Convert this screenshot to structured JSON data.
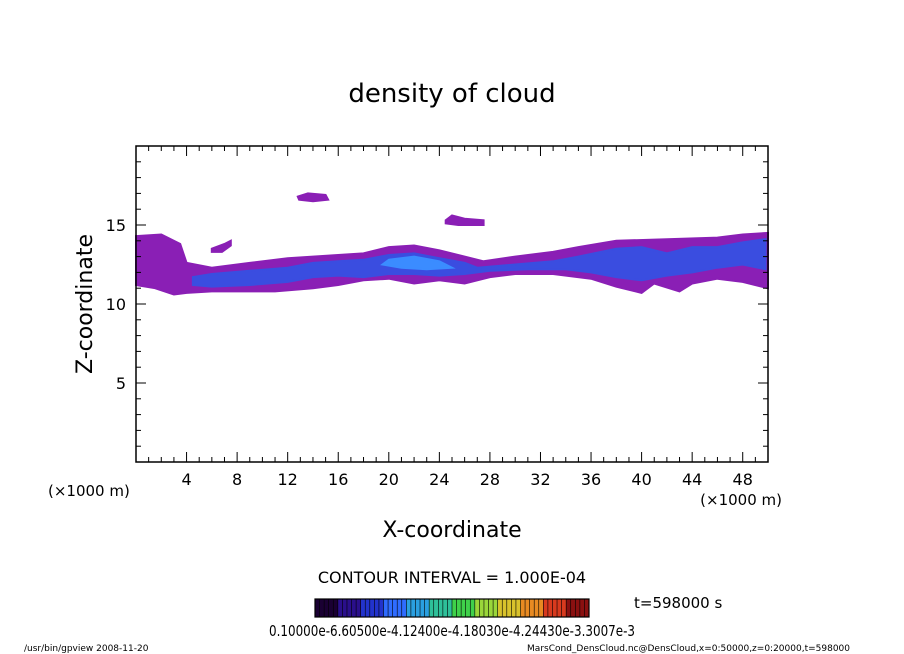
{
  "chart_data": {
    "type": "heatmap",
    "title": "density of cloud",
    "xlabel": "X-coordinate",
    "ylabel": "Z-coordinate",
    "x_unit": "(×1000 m)",
    "x_unit_right": "(×1000 m)",
    "xlim": [
      0,
      50
    ],
    "ylim": [
      0,
      20
    ],
    "x_ticks": [
      4,
      8,
      12,
      16,
      20,
      24,
      28,
      32,
      36,
      40,
      44,
      48
    ],
    "x_tick_labels": [
      "4",
      "8",
      "12",
      "16",
      "20",
      "24",
      "28",
      "32",
      "36",
      "40",
      "44",
      "48"
    ],
    "y_ticks": [
      5,
      10,
      15
    ],
    "y_tick_labels": [
      "5",
      "10",
      "15"
    ],
    "contour_interval_text": "CONTOUR INTERVAL = 1.000E-04",
    "time_text": "t=598000 s",
    "colorbar_labels_text": "0.10000e-6.60500e-4.12400e-4.18030e-4.24430e-3.3007e-3",
    "colorbar_colors": [
      "#1a0033",
      "#2a0f8c",
      "#2233cc",
      "#2f6cff",
      "#2a9fe0",
      "#2ec09a",
      "#3fd14a",
      "#9ad63a",
      "#d8c22c",
      "#e88a22",
      "#d83a1e",
      "#8a1010"
    ],
    "layers": [
      {
        "name": "outer",
        "color": "#8a1fb5",
        "polygon": [
          [
            0,
            14.3
          ],
          [
            2,
            14.4
          ],
          [
            3.5,
            13.8
          ],
          [
            4,
            12.6
          ],
          [
            6,
            12.3
          ],
          [
            9,
            12.6
          ],
          [
            12,
            12.9
          ],
          [
            14,
            13.0
          ],
          [
            18,
            13.2
          ],
          [
            20,
            13.6
          ],
          [
            22,
            13.7
          ],
          [
            24,
            13.4
          ],
          [
            26,
            13.0
          ],
          [
            27.5,
            12.7
          ],
          [
            30,
            13.0
          ],
          [
            33,
            13.3
          ],
          [
            35,
            13.6
          ],
          [
            38,
            14.0
          ],
          [
            42,
            14.1
          ],
          [
            46,
            14.2
          ],
          [
            48,
            14.4
          ],
          [
            50,
            14.5
          ],
          [
            50,
            11.0
          ],
          [
            48,
            11.4
          ],
          [
            46,
            11.6
          ],
          [
            44,
            11.3
          ],
          [
            43,
            10.8
          ],
          [
            41,
            11.3
          ],
          [
            40,
            10.7
          ],
          [
            38,
            11.1
          ],
          [
            36,
            11.6
          ],
          [
            33,
            11.9
          ],
          [
            30,
            11.9
          ],
          [
            28,
            11.7
          ],
          [
            26,
            11.3
          ],
          [
            24,
            11.5
          ],
          [
            22,
            11.3
          ],
          [
            20,
            11.6
          ],
          [
            18,
            11.5
          ],
          [
            16,
            11.2
          ],
          [
            14,
            11.0
          ],
          [
            11,
            10.8
          ],
          [
            8,
            10.8
          ],
          [
            6,
            10.8
          ],
          [
            4,
            10.7
          ],
          [
            3,
            10.6
          ],
          [
            1.5,
            11.0
          ],
          [
            0,
            11.2
          ]
        ]
      },
      {
        "name": "inner",
        "color": "#3a4de0",
        "polygon": [
          [
            4.5,
            11.7
          ],
          [
            6,
            11.9
          ],
          [
            9,
            12.1
          ],
          [
            12,
            12.3
          ],
          [
            14,
            12.6
          ],
          [
            16,
            12.7
          ],
          [
            18,
            12.8
          ],
          [
            20,
            13.1
          ],
          [
            22,
            13.2
          ],
          [
            24,
            12.9
          ],
          [
            26,
            12.6
          ],
          [
            27,
            12.3
          ],
          [
            30,
            12.5
          ],
          [
            33,
            12.7
          ],
          [
            35,
            13.0
          ],
          [
            38,
            13.5
          ],
          [
            40,
            13.6
          ],
          [
            42,
            13.2
          ],
          [
            44,
            13.6
          ],
          [
            46,
            13.6
          ],
          [
            48,
            13.9
          ],
          [
            49.8,
            14.1
          ],
          [
            49.8,
            12.2
          ],
          [
            48,
            12.5
          ],
          [
            46,
            12.3
          ],
          [
            44,
            12.0
          ],
          [
            42,
            11.8
          ],
          [
            40,
            11.5
          ],
          [
            38,
            11.7
          ],
          [
            36,
            12.0
          ],
          [
            34,
            12.2
          ],
          [
            31,
            12.2
          ],
          [
            28,
            12.1
          ],
          [
            26,
            11.9
          ],
          [
            24,
            11.8
          ],
          [
            22,
            11.9
          ],
          [
            20,
            11.9
          ],
          [
            18,
            11.7
          ],
          [
            16,
            11.8
          ],
          [
            14,
            11.7
          ],
          [
            12,
            11.4
          ],
          [
            9,
            11.2
          ],
          [
            6,
            11.1
          ],
          [
            4.5,
            11.2
          ]
        ]
      },
      {
        "name": "core",
        "color": "#3b8cff",
        "polygon": [
          [
            20,
            12.8
          ],
          [
            22,
            13.0
          ],
          [
            24,
            12.7
          ],
          [
            25,
            12.3
          ],
          [
            23,
            12.2
          ],
          [
            21,
            12.3
          ],
          [
            19.5,
            12.5
          ]
        ]
      },
      {
        "name": "isolated-a",
        "color": "#8a1fb5",
        "polygon": [
          [
            12.8,
            16.8
          ],
          [
            13.6,
            17.0
          ],
          [
            15,
            16.9
          ],
          [
            15.2,
            16.6
          ],
          [
            14,
            16.5
          ],
          [
            12.9,
            16.6
          ]
        ]
      },
      {
        "name": "isolated-b",
        "color": "#8a1fb5",
        "polygon": [
          [
            24.5,
            15.3
          ],
          [
            25,
            15.6
          ],
          [
            26,
            15.4
          ],
          [
            27.5,
            15.3
          ],
          [
            27.5,
            15.0
          ],
          [
            25.5,
            15.0
          ],
          [
            24.5,
            15.1
          ]
        ]
      },
      {
        "name": "isolated-c",
        "color": "#8a1fb5",
        "polygon": [
          [
            6,
            13.5
          ],
          [
            7,
            13.8
          ],
          [
            7.5,
            14.0
          ],
          [
            7.5,
            13.7
          ],
          [
            6.8,
            13.3
          ],
          [
            6,
            13.3
          ]
        ]
      }
    ]
  },
  "footer": {
    "left": "/usr/bin/gpview   2008-11-20",
    "right": "MarsCond_DensCloud.nc@DensCloud,x=0:50000,z=0:20000,t=598000"
  }
}
